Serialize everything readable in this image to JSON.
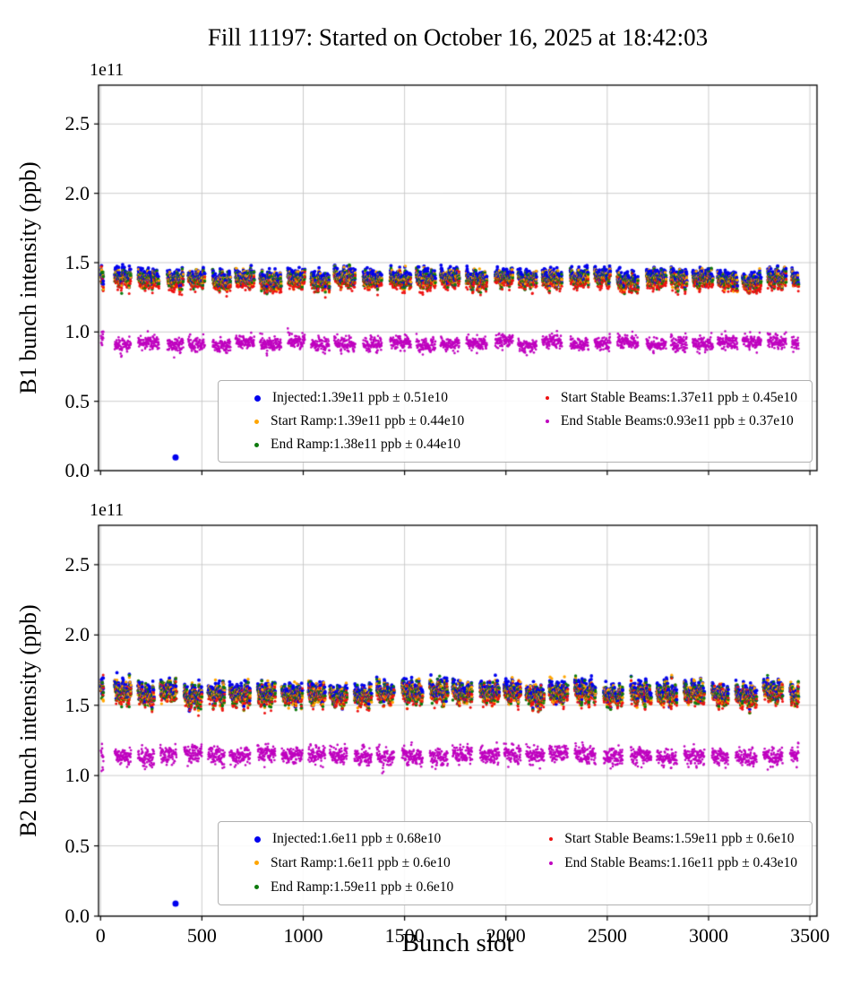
{
  "title": "Fill 11197: Started on October 16, 2025 at 18:42:03",
  "chart_data": [
    {
      "type": "scatter",
      "plot_id": "B1",
      "ylabel": "B1 bunch intensity (ppb)",
      "xlabel": "",
      "y_offset_label": "1e11",
      "xlim": [
        -10,
        3535
      ],
      "ylim": [
        0,
        2.78
      ],
      "xticks": [
        0,
        500,
        1000,
        1500,
        2000,
        2500,
        3000,
        3500
      ],
      "ytick_labels": [
        "0.0",
        "0.5",
        "1.0",
        "1.5",
        "2.0",
        "2.5"
      ],
      "yticks": [
        0.0,
        0.5,
        1.0,
        1.5,
        2.0,
        2.5
      ],
      "grid": true,
      "legend_position": "lower center, two columns",
      "x_data_range": [
        2,
        3445
      ],
      "structure_note": "~29 bunch trains of ~80-105 slots separated by small gaps",
      "series": [
        {
          "name": "Injected",
          "color": "#0000ee",
          "mean_ppb_e11": 1.39,
          "std_e10": 0.51,
          "legend_label": "Injected:1.39e11 ppb ± 0.51e10"
        },
        {
          "name": "Start Ramp",
          "color": "#ffa500",
          "mean_ppb_e11": 1.39,
          "std_e10": 0.44,
          "legend_label": "Start Ramp:1.39e11 ppb ± 0.44e10"
        },
        {
          "name": "End Ramp",
          "color": "#0d7a0d",
          "mean_ppb_e11": 1.38,
          "std_e10": 0.44,
          "legend_label": "End Ramp:1.38e11 ppb ± 0.44e10"
        },
        {
          "name": "Start Stable Beams",
          "color": "#ee1111",
          "mean_ppb_e11": 1.37,
          "std_e10": 0.45,
          "legend_label": "Start Stable Beams:1.37e11 ppb ± 0.45e10"
        },
        {
          "name": "End Stable Beams",
          "color": "#bf00bf",
          "mean_ppb_e11": 0.93,
          "std_e10": 0.37,
          "legend_label": "End Stable Beams:0.93e11 ppb ± 0.37e10"
        }
      ],
      "outliers": [
        {
          "series": "Injected",
          "x": 370,
          "y_e11": 0.095
        }
      ]
    },
    {
      "type": "scatter",
      "plot_id": "B2",
      "ylabel": "B2 bunch intensity (ppb)",
      "xlabel": "Bunch slot",
      "y_offset_label": "1e11",
      "xlim": [
        -10,
        3535
      ],
      "ylim": [
        0,
        2.78
      ],
      "xticks": [
        0,
        500,
        1000,
        1500,
        2000,
        2500,
        3000,
        3500
      ],
      "ytick_labels": [
        "0.0",
        "0.5",
        "1.0",
        "1.5",
        "2.0",
        "2.5"
      ],
      "yticks": [
        0.0,
        0.5,
        1.0,
        1.5,
        2.0,
        2.5
      ],
      "grid": true,
      "legend_position": "lower center, two columns",
      "x_data_range": [
        2,
        3445
      ],
      "structure_note": "~29 bunch trains of ~80-105 slots separated by small gaps",
      "series": [
        {
          "name": "Injected",
          "color": "#0000ee",
          "mean_ppb_e11": 1.6,
          "std_e10": 0.68,
          "legend_label": "Injected:1.6e11 ppb ± 0.68e10"
        },
        {
          "name": "Start Ramp",
          "color": "#ffa500",
          "mean_ppb_e11": 1.6,
          "std_e10": 0.6,
          "legend_label": "Start Ramp:1.6e11 ppb ± 0.6e10"
        },
        {
          "name": "End Ramp",
          "color": "#0d7a0d",
          "mean_ppb_e11": 1.59,
          "std_e10": 0.6,
          "legend_label": "End Ramp:1.59e11 ppb ± 0.6e10"
        },
        {
          "name": "Start Stable Beams",
          "color": "#ee1111",
          "mean_ppb_e11": 1.59,
          "std_e10": 0.6,
          "legend_label": "Start Stable Beams:1.59e11 ppb ± 0.6e10"
        },
        {
          "name": "End Stable Beams",
          "color": "#bf00bf",
          "mean_ppb_e11": 1.16,
          "std_e10": 0.43,
          "legend_label": "End Stable Beams:1.16e11 ppb ± 0.43e10"
        }
      ],
      "outliers": [
        {
          "series": "Injected",
          "x": 370,
          "y_e11": 0.09
        }
      ]
    }
  ]
}
